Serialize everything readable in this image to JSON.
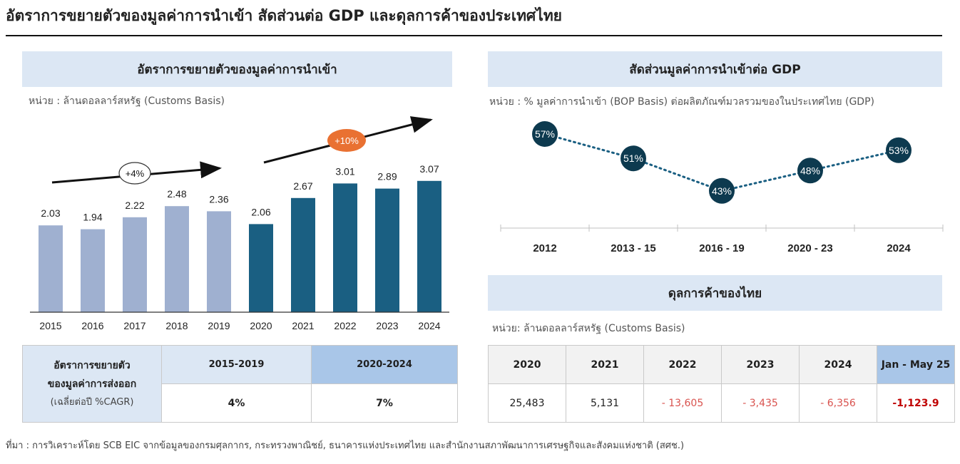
{
  "main_title": "อัตราการขยายตัวของมูลค่าการนำเข้า สัดส่วนต่อ GDP และดุลการค้าของประเทศไทย",
  "colors": {
    "bar_early": "#9fb0d0",
    "bar_late": "#1a5f82",
    "dot": "#0d3a4f",
    "highlight_oval": "#e97132",
    "negative": "#d9534f",
    "negative_strong": "#c00000",
    "header_bg": "#dce7f4",
    "header_blue": "#a9c6e8"
  },
  "left_panel": {
    "header": "อัตราการขยายตัวของมูลค่าการนำเข้า",
    "unit": "หน่วย : ล้านดอลลาร์สหรัฐ (Customs Basis)"
  },
  "right_panel": {
    "header": "สัดส่วนมูลค่าการนำเข้าต่อ GDP",
    "unit": "หน่วย : % มูลค่าการนำเข้า (BOP Basis) ต่อผลิตภัณฑ์มวลรวมของในประเทศไทย  (GDP)"
  },
  "trade_panel": {
    "header": "ดุลการค้าของไทย",
    "unit": "หน่วย: ล้านดอลลาร์สหรัฐ (Customs Basis)"
  },
  "chart_data": [
    {
      "type": "bar",
      "categories": [
        "2015",
        "2016",
        "2017",
        "2018",
        "2019",
        "2020",
        "2021",
        "2022",
        "2023",
        "2024"
      ],
      "values": [
        2.03,
        1.94,
        2.22,
        2.48,
        2.36,
        2.06,
        2.67,
        3.01,
        2.89,
        3.07
      ],
      "value_labels": [
        "2.03",
        "1.94",
        "2.22",
        "2.48",
        "2.36",
        "2.06",
        "2.67",
        "3.01",
        "2.89",
        "3.07"
      ],
      "annotations": [
        "+4%",
        "+10%"
      ]
    },
    {
      "type": "line",
      "categories": [
        "2012",
        "2013 - 15",
        "2016 - 19",
        "2020 - 23",
        "2024"
      ],
      "values": [
        57,
        51,
        43,
        48,
        53
      ],
      "value_labels": [
        "57%",
        "51%",
        "43%",
        "48%",
        "53%"
      ]
    },
    {
      "type": "table",
      "cagr_table": {
        "row_label": [
          "อัตราการขยายตัว",
          "ของมูลค่าการส่งออก",
          "(เฉลี่ยต่อปี %CAGR)"
        ],
        "headers": [
          "2015-2019",
          "2020-2024"
        ],
        "values": [
          "4%",
          "7%"
        ]
      },
      "trade_table": {
        "headers": [
          "2020",
          "2021",
          "2022",
          "2023",
          "2024",
          "Jan - May 25"
        ],
        "values": [
          "25,483",
          "5,131",
          "- 13,605",
          "- 3,435",
          "- 6,356",
          "-1,123.9"
        ]
      }
    }
  ],
  "source": "ที่มา : การวิเคราะห์โดย SCB EIC จากข้อมูลของกรมศุลกากร, กระทรวงพาณิชย์, ธนาคารแห่งประเทศไทย และสำนักงานสภาพัฒนาการเศรษฐกิจและสังคมแห่งชาติ (สศช.)"
}
